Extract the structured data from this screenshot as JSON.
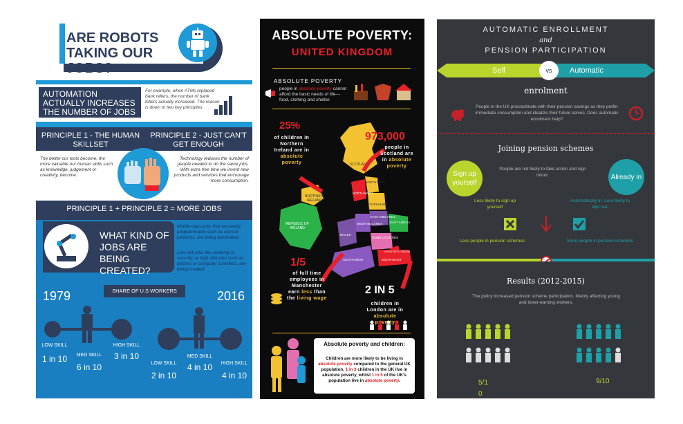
{
  "panel1": {
    "title": "ARE ROBOTS TAKING OUR JOBS?",
    "automation": "AUTOMATION ACTUALLY INCREASES THE NUMBER OF JOBS",
    "automation_note": "For example, when ATMs replaced bank tellers, the number of bank tellers actually increased. The reason is down to two key principles.",
    "principle1": "PRINCIPLE 1 - THE HUMAN SKILLSET",
    "principle2": "PRINCIPLE 2 - JUST CAN'T GET ENOUGH",
    "principle1_text": "The better our tools become, the more valuable our human skills such as knowledge, judgement or creativity, become.",
    "principle2_text": "Technology reduces the number of people needed to do the same jobs. With extra free time we invent new products and services that encourage more consumption.",
    "sum": "PRINCIPLE 1 + PRINCIPLE 2 = MORE JOBS",
    "what_kind": "WHAT KIND OF JOBS ARE BEING CREATED?",
    "what_note1": "Middle-class jobs that are easily programmable such as clerical positions, are being automated.",
    "what_note2": "Low skill jobs like cleaning or security, or high skill jobs such as doctors or computer scientists, are being created.",
    "share": "SHARE OF U.S WORKERS",
    "year_a": "1979",
    "year_b": "2016",
    "low_label": "LOW SKILL",
    "med_label": "MED SKILL",
    "high_label": "HIGH SKILL",
    "y1979": {
      "low": "1 in 10",
      "med": "6 in 10",
      "high": "3 in 10"
    },
    "y2016": {
      "low": "2 in 10",
      "med": "4 in 10",
      "high": "4 in 10"
    }
  },
  "panel2": {
    "title": "ABSOLUTE POVERTY:",
    "subtitle": "UNITED KINGDOM",
    "ap_heading": "ABSOLUTE POVERTY",
    "ap_text_pre": "people in ",
    "ap_text_em": "absolute poverty",
    "ap_text_post": " cannot afford the basic needs of life—food, clothing and shelter.",
    "ni_value": "25%",
    "ni_text": "of children in Northern Ireland are in",
    "ni_em": "absolute poverty",
    "sc_value": "973,000",
    "sc_text": "people in Scotland are in",
    "sc_em": "absolute poverty",
    "mc_value": "1/5",
    "mc_text": "of full time employees in Manchester earn",
    "mc_em": "less",
    "mc_text2": "than the",
    "mc_em2": "living wage",
    "ld_value": "2 IN 5",
    "ld_text": "children in London are in",
    "ld_em": "absolute poverty",
    "regions": [
      "SCOTLAND",
      "NORTHERN IRELAND",
      "REPUBLIC OF IRELAND",
      "NORTH EAST",
      "NORTH WEST",
      "YORKSHIRE",
      "EAST MIDLANDS",
      "WEST MIDLANDS",
      "EAST ANGLIA",
      "WALES",
      "HOME COUNTIES",
      "SOUTH WEST",
      "SOUTH EAST",
      "GREATER LONDON"
    ],
    "box_heading": "Absolute poverty and children:",
    "box_text_1": "Children are more likely to be living in ",
    "box_em_1": "absolute poverty",
    "box_text_2": " compared to the general UK population. ",
    "box_em_2": "1 in 3",
    "box_text_3": " children in the UK live in absolute poverty, whilst ",
    "box_em_3": "1 in 5",
    "box_text_4": " of the UK's population live in ",
    "box_em_4": "absolute poverty",
    "box_text_5": "."
  },
  "panel3": {
    "title_1": "AUTOMATIC ENROLLMENT",
    "title_and": "and",
    "title_2": "PENSION PARTICIPATION",
    "self": "Self",
    "vs": "vs",
    "automatic": "Automatic",
    "enrolment": "enrolment",
    "intro": "People in the UK procrastinate with their pension savings as they prefer immediate consumption and idealize their future selves. Does automatic enrolment help?",
    "joining": "Joining pension schemes",
    "signup": "Sign up yourself",
    "already": "Already in",
    "mid_text": "People are not likely to take action and sign in/out.",
    "less_likely": "Less likely to sign up yourself",
    "auto_likely": "Automatically in. Less likely to sign out.",
    "less_people": "Less people in pension schemes",
    "more_people": "More people in pension schemes",
    "results": "Results (2012-2015)",
    "results_text": "The policy increased pension scheme participation. Mainly affecting young and lower-earning workers.",
    "frac_a": "5/10",
    "frac_b": "9/10",
    "colors": {
      "green": "#b9d42c",
      "teal": "#1fa0a8",
      "red": "#c8202a"
    }
  }
}
